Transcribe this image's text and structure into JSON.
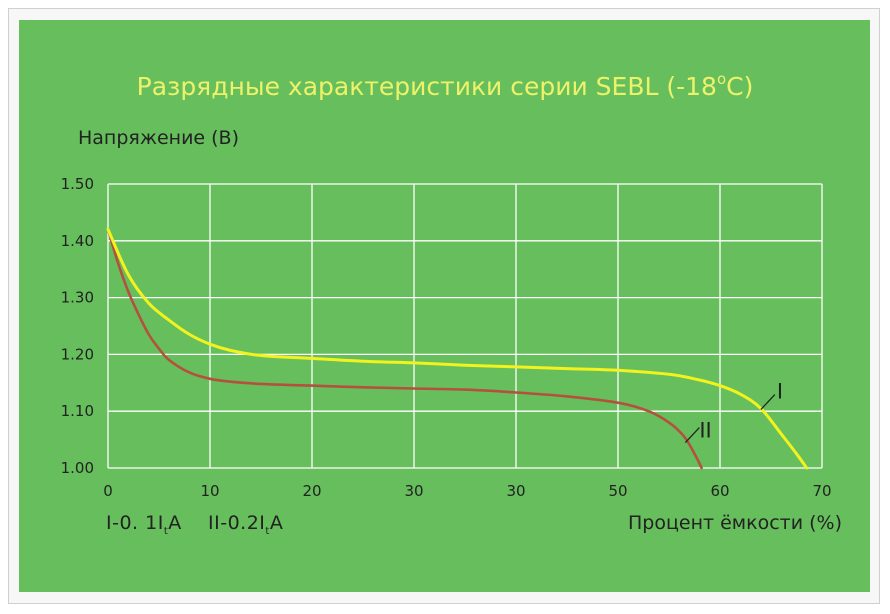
{
  "title": {
    "main": "Разрядные характеристики серии SEBL (-18",
    "sup": "o",
    "tail": "C)"
  },
  "notes": {
    "one": {
      "prefix": "I-0. 1I",
      "sub": "t",
      "suffix": "A"
    },
    "two": {
      "prefix": "II-0.2I",
      "sub": "t",
      "suffix": "A"
    }
  },
  "colors": {
    "panel": "#66bf5c",
    "title": "#eef26a",
    "grid": "#ffffff",
    "series_I": "#f2f21e",
    "series_II": "#b5503f"
  },
  "chart_data": {
    "type": "line",
    "title": "Разрядные характеристики серии SEBL (-18°C)",
    "xlabel": "Процент ёмкости (%)",
    "ylabel": "Напряжение (В)",
    "x_tick_labels": [
      "0",
      "10",
      "20",
      "30",
      "30",
      "50",
      "60",
      "70"
    ],
    "y_tick_labels": [
      "1.00",
      "1.10",
      "1.20",
      "1.30",
      "1.40",
      "1.50"
    ],
    "xlim": [
      0,
      70
    ],
    "ylim": [
      1.0,
      1.5
    ],
    "grid": true,
    "series": [
      {
        "name": "I",
        "x": [
          0,
          2,
          4,
          6,
          8,
          10,
          12,
          15,
          20,
          25,
          30,
          35,
          40,
          45,
          50,
          55,
          58,
          60,
          62,
          64,
          66,
          67.5,
          68.5
        ],
        "y": [
          1.42,
          1.34,
          1.29,
          1.26,
          1.235,
          1.218,
          1.207,
          1.198,
          1.193,
          1.188,
          1.185,
          1.181,
          1.178,
          1.175,
          1.172,
          1.165,
          1.155,
          1.145,
          1.13,
          1.105,
          1.06,
          1.025,
          1.0
        ]
      },
      {
        "name": "II",
        "x": [
          0,
          1,
          2,
          3,
          4,
          5,
          6,
          8,
          10,
          12,
          15,
          20,
          25,
          30,
          35,
          40,
          45,
          50,
          53,
          55,
          56.5,
          57.5,
          58.2
        ],
        "y": [
          1.42,
          1.36,
          1.31,
          1.27,
          1.235,
          1.21,
          1.19,
          1.168,
          1.157,
          1.152,
          1.148,
          1.145,
          1.142,
          1.14,
          1.138,
          1.133,
          1.126,
          1.115,
          1.1,
          1.08,
          1.055,
          1.025,
          1.0
        ]
      }
    ]
  }
}
